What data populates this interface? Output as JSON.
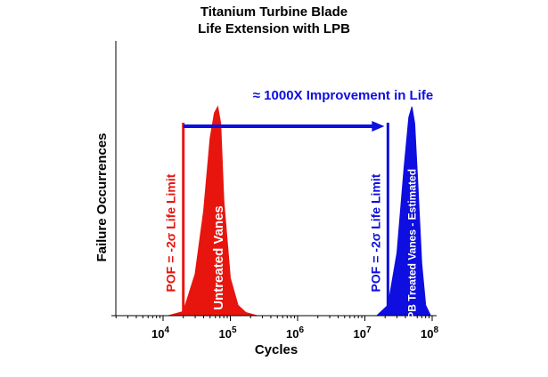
{
  "chart_data": {
    "type": "area",
    "title_line1": "Titanium Turbine Blade",
    "title_line2": "Life Extension with LPB",
    "xlabel": "Cycles",
    "ylabel": "Failure Occurrences",
    "x_scale": "log",
    "xlim": [
      10000,
      100000000
    ],
    "x_tick_labels": [
      {
        "base": "10",
        "exp": "4",
        "value": 10000
      },
      {
        "base": "10",
        "exp": "5",
        "value": 100000
      },
      {
        "base": "10",
        "exp": "6",
        "value": 1000000
      },
      {
        "base": "10",
        "exp": "7",
        "value": 10000000
      },
      {
        "base": "10",
        "exp": "8",
        "value": 100000000
      }
    ],
    "grid": false,
    "series": [
      {
        "label": "Untreated Vanes",
        "color": "#e8150e",
        "x": [
          12000,
          20000,
          30000,
          40000,
          50000,
          58000,
          65000,
          72000,
          80000,
          100000,
          130000,
          170000,
          250000
        ],
        "y": [
          0.0,
          0.02,
          0.2,
          0.5,
          0.85,
          0.97,
          1.0,
          0.92,
          0.55,
          0.18,
          0.05,
          0.015,
          0.0
        ]
      },
      {
        "label": "LPB Treated Vanes - Estimated",
        "color": "#0e0ee0",
        "x": [
          15000000,
          22000000,
          30000000,
          38000000,
          45000000,
          50000000,
          55000000,
          62000000,
          70000000,
          80000000,
          95000000
        ],
        "y": [
          0.0,
          0.05,
          0.3,
          0.7,
          0.95,
          1.0,
          0.92,
          0.6,
          0.25,
          0.05,
          0.0
        ]
      }
    ],
    "limits": [
      {
        "label": "POF = -2σ Life Limit",
        "x": 20000,
        "color": "#e8150e"
      },
      {
        "label": "POF = -2σ Life Limit",
        "x": 22000000,
        "color": "#0e0ee0"
      }
    ],
    "arrow": {
      "from_x": 20000,
      "to_x": 22000000,
      "color": "#0e0ee0"
    },
    "annotation": "≈ 1000X  Improvement in Life"
  }
}
